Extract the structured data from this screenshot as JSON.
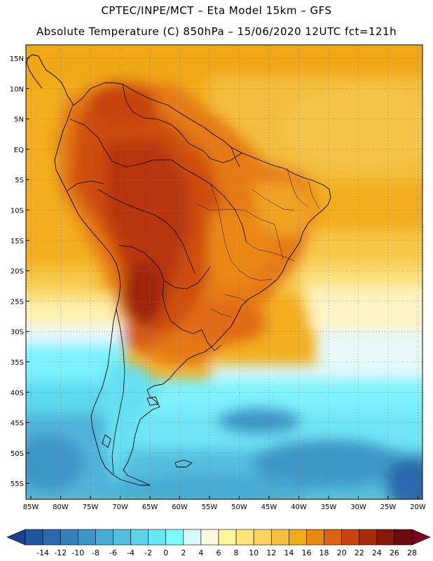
{
  "title_line1": "CPTEC/INPE/MCT –  Eta Model 15km – GFS",
  "title_line2": "Absolute Temperature (C) 850hPa – 15/06/2020 12UTC fct=121h",
  "lat_labels": [
    "15N",
    "10N",
    "5N",
    "EQ",
    "5S",
    "10S",
    "15S",
    "20S",
    "25S",
    "30S",
    "35S",
    "40S",
    "45S",
    "50S",
    "55S"
  ],
  "lon_labels": [
    "85W",
    "80W",
    "75W",
    "70W",
    "65W",
    "60W",
    "55W",
    "50W",
    "45W",
    "40W",
    "35W",
    "30W",
    "25W",
    "20W"
  ],
  "colorbar": {
    "labels": [
      "-14",
      "-12",
      "-10",
      "-8",
      "-6",
      "-4",
      "-2",
      "0",
      "2",
      "4",
      "6",
      "8",
      "10",
      "12",
      "14",
      "16",
      "18",
      "20",
      "22",
      "24",
      "26",
      "28"
    ],
    "colors": [
      "#1d3f8f",
      "#24559f",
      "#2b6aae",
      "#3581bc",
      "#3e97c8",
      "#47abd4",
      "#52bfde",
      "#5cd3e8",
      "#66e8f2",
      "#7cfaff",
      "#d6f8ff",
      "#fff8e0",
      "#fff59a",
      "#fde57a",
      "#fbd45e",
      "#f6c03f",
      "#f1ab1f",
      "#ea8814",
      "#de6310",
      "#c8430c",
      "#a82c0a",
      "#86190a",
      "#6d0c0c",
      "#7a0022"
    ]
  }
}
